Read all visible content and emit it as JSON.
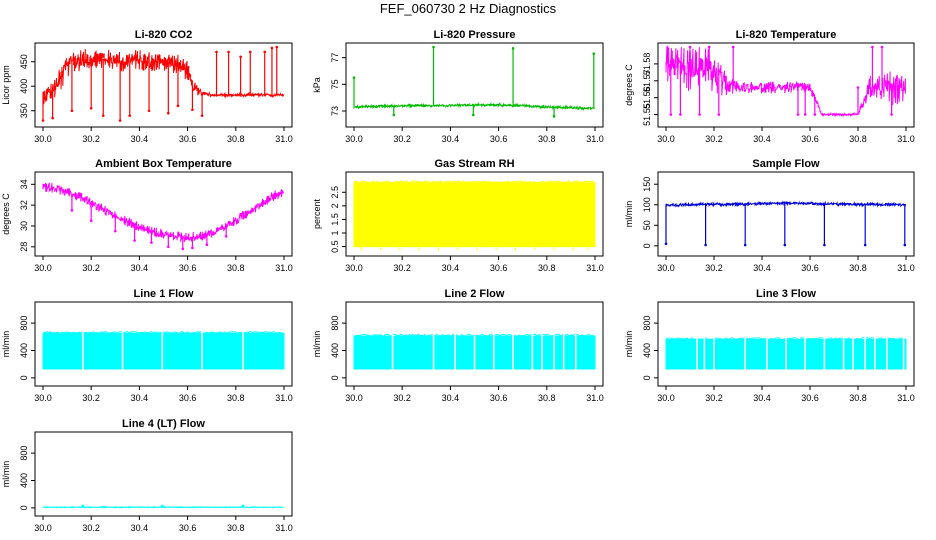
{
  "figure": {
    "title": "FEF_060730  2 Hz Diagnostics"
  },
  "chart_data": [
    {
      "type": "line",
      "title": "Li-820 CO2",
      "ylabel": "Licor ppm",
      "xlim": [
        30.0,
        31.0
      ],
      "ylim": [
        325,
        480
      ],
      "xticks": [
        30.0,
        30.2,
        30.4,
        30.6,
        30.8,
        31.0
      ],
      "xtick_labels": [
        "30.0",
        "30.2",
        "30.4",
        "30.6",
        "30.8",
        "31.0"
      ],
      "yticks": [
        350,
        400,
        450
      ],
      "ytick_labels": [
        "350",
        "400",
        "450"
      ],
      "color": "#ff0000",
      "series": [
        {
          "name": "CO2",
          "x": [
            30.0,
            30.02,
            30.05,
            30.08,
            30.1,
            30.14,
            30.18,
            30.22,
            30.26,
            30.3,
            30.34,
            30.38,
            30.42,
            30.46,
            30.5,
            30.54,
            30.58,
            30.6,
            30.62,
            30.64,
            30.66,
            30.68,
            30.7,
            30.75,
            30.8,
            30.85,
            30.9,
            30.95,
            31.0
          ],
          "values": [
            380,
            385,
            395,
            420,
            445,
            452,
            455,
            458,
            455,
            452,
            450,
            455,
            452,
            450,
            450,
            448,
            440,
            430,
            400,
            392,
            386,
            384,
            382,
            382,
            382,
            382,
            382,
            382,
            382
          ],
          "band": [
            25,
            25,
            30,
            40,
            40,
            35,
            30,
            30,
            30,
            30,
            30,
            30,
            30,
            30,
            30,
            30,
            30,
            30,
            20,
            15,
            10,
            8,
            5,
            5,
            5,
            5,
            5,
            5,
            5
          ],
          "spikes_x": [
            30.0,
            30.04,
            30.12,
            30.2,
            30.25,
            30.32,
            30.36,
            30.44,
            30.52,
            30.56,
            30.62,
            30.66,
            30.72,
            30.77,
            30.82,
            30.86,
            30.92,
            30.95,
            30.97
          ],
          "spikes_to": [
            330,
            335,
            350,
            355,
            340,
            330,
            340,
            350,
            345,
            360,
            352,
            340,
            470,
            470,
            460,
            470,
            470,
            478,
            480
          ]
        }
      ]
    },
    {
      "type": "line",
      "title": "Li-820 Pressure",
      "ylabel": "kPa",
      "xlim": [
        30.0,
        31.0
      ],
      "ylim": [
        72.1,
        77.8
      ],
      "xticks": [
        30.0,
        30.2,
        30.4,
        30.6,
        30.8,
        31.0
      ],
      "xtick_labels": [
        "30.0",
        "30.2",
        "30.4",
        "30.6",
        "30.8",
        "31.0"
      ],
      "yticks": [
        73,
        75,
        77
      ],
      "ytick_labels": [
        "73",
        "75",
        "77"
      ],
      "color": "#00bb00",
      "series": [
        {
          "name": "Pressure",
          "x": [
            30.0,
            30.1,
            30.2,
            30.3,
            30.4,
            30.5,
            30.6,
            30.7,
            30.8,
            30.9,
            31.0
          ],
          "values": [
            73.3,
            73.35,
            73.38,
            73.4,
            73.42,
            73.45,
            73.45,
            73.4,
            73.3,
            73.25,
            73.2
          ],
          "band": [
            0.15,
            0.15,
            0.15,
            0.15,
            0.15,
            0.15,
            0.15,
            0.15,
            0.15,
            0.15,
            0.15
          ],
          "spikes_x": [
            30.0,
            30.165,
            30.33,
            30.495,
            30.66,
            30.83,
            30.995
          ],
          "spikes_to": [
            75.5,
            72.7,
            77.8,
            72.7,
            77.7,
            72.6,
            77.3
          ]
        }
      ]
    },
    {
      "type": "line",
      "title": "Li-820 Temperature",
      "ylabel": "degrees C",
      "xlim": [
        30.0,
        31.0
      ],
      "ylim": [
        51.545,
        51.59
      ],
      "xticks": [
        30.0,
        30.2,
        30.4,
        30.6,
        30.8,
        31.0
      ],
      "xtick_labels": [
        "30.0",
        "30.2",
        "30.4",
        "30.6",
        "30.8",
        "31.0"
      ],
      "yticks": [
        51.55,
        51.56,
        51.57,
        51.58
      ],
      "ytick_labels": [
        "51.55",
        "51.56",
        "51.57",
        "51.58"
      ],
      "color": "#ff00ff",
      "series": [
        {
          "name": "Temperature",
          "x": [
            30.0,
            30.05,
            30.1,
            30.15,
            30.2,
            30.25,
            30.3,
            30.35,
            30.4,
            30.45,
            30.5,
            30.55,
            30.6,
            30.65,
            30.7,
            30.75,
            30.8,
            30.85,
            30.9,
            30.95,
            31.0
          ],
          "values": [
            51.58,
            51.58,
            51.575,
            51.58,
            51.575,
            51.568,
            51.566,
            51.566,
            51.566,
            51.566,
            51.566,
            51.566,
            51.566,
            51.55,
            51.55,
            51.55,
            51.55,
            51.566,
            51.566,
            51.566,
            51.566
          ],
          "band": [
            0.016,
            0.016,
            0.02,
            0.016,
            0.02,
            0.01,
            0.005,
            0.005,
            0.005,
            0.005,
            0.005,
            0.005,
            0.005,
            0.001,
            0.001,
            0.001,
            0.001,
            0.01,
            0.012,
            0.016,
            0.01
          ],
          "spikes_x": [
            30.02,
            30.06,
            30.1,
            30.14,
            30.18,
            30.22,
            30.28,
            30.55,
            30.58,
            30.62,
            30.8,
            30.86,
            30.9,
            30.94
          ],
          "spikes_to": [
            51.55,
            51.55,
            51.59,
            51.55,
            51.59,
            51.55,
            51.59,
            51.55,
            51.55,
            51.55,
            51.566,
            51.59,
            51.59,
            51.55
          ]
        }
      ]
    },
    {
      "type": "line",
      "title": "Ambient Box Temperature",
      "ylabel": "degrees C",
      "xlim": [
        30.0,
        31.0
      ],
      "ylim": [
        27.5,
        34.8
      ],
      "xticks": [
        30.0,
        30.2,
        30.4,
        30.6,
        30.8,
        31.0
      ],
      "xtick_labels": [
        "30.0",
        "30.2",
        "30.4",
        "30.6",
        "30.8",
        "31.0"
      ],
      "yticks": [
        28,
        30,
        32,
        34
      ],
      "ytick_labels": [
        "28",
        "30",
        "32",
        "34"
      ],
      "color": "#ff00ff",
      "series": [
        {
          "name": "Ambient",
          "x": [
            30.0,
            30.05,
            30.1,
            30.15,
            30.2,
            30.25,
            30.3,
            30.35,
            30.4,
            30.45,
            30.5,
            30.55,
            30.6,
            30.65,
            30.7,
            30.75,
            30.8,
            30.85,
            30.9,
            30.95,
            31.0
          ],
          "values": [
            33.8,
            33.6,
            33.3,
            32.8,
            32.2,
            31.6,
            31.0,
            30.4,
            29.9,
            29.5,
            29.2,
            29.0,
            28.9,
            29.0,
            29.3,
            29.8,
            30.5,
            31.3,
            32.1,
            32.8,
            33.3
          ],
          "band": [
            0.7,
            0.7,
            0.7,
            0.7,
            0.7,
            0.7,
            0.7,
            0.7,
            0.7,
            0.7,
            0.7,
            0.7,
            0.7,
            0.7,
            0.7,
            0.7,
            0.7,
            0.7,
            0.7,
            0.7,
            0.7
          ],
          "spikes_x": [
            30.12,
            30.2,
            30.3,
            30.38,
            30.45,
            30.52,
            30.58,
            30.62,
            30.68,
            30.76
          ],
          "spikes_to": [
            31.5,
            30.5,
            29.5,
            28.6,
            28.4,
            28.0,
            27.8,
            27.9,
            28.2,
            29.0
          ]
        }
      ]
    },
    {
      "type": "area",
      "title": "Gas Stream RH",
      "ylabel": "percent",
      "xlim": [
        30.0,
        31.0
      ],
      "ylim": [
        0.3,
        3.1
      ],
      "xticks": [
        30.0,
        30.2,
        30.4,
        30.6,
        30.8,
        31.0
      ],
      "xtick_labels": [
        "30.0",
        "30.2",
        "30.4",
        "30.6",
        "30.8",
        "31.0"
      ],
      "yticks": [
        0.5,
        1.0,
        1.5,
        2.0,
        2.5
      ],
      "ytick_labels": [
        "0.5",
        "1",
        "1.5",
        "2",
        "2.5"
      ],
      "color": "#ffff00",
      "series": [
        {
          "name": "RH",
          "x": [
            30.0,
            31.0
          ],
          "band_top": [
            2.85,
            2.85
          ],
          "band_bottom": [
            0.5,
            0.5
          ],
          "spikes_x": [
            30.03,
            30.11,
            30.19,
            30.27,
            30.35,
            30.43,
            30.51,
            30.59,
            30.67,
            30.75,
            30.83,
            30.91,
            30.97
          ],
          "spikes_to": [
            0.35,
            0.38,
            0.35,
            0.36,
            0.35,
            0.37,
            0.35,
            0.36,
            0.35,
            0.38,
            0.35,
            0.36,
            0.37
          ]
        }
      ]
    },
    {
      "type": "line",
      "title": "Sample Flow",
      "ylabel": "ml/min",
      "xlim": [
        30.0,
        31.0
      ],
      "ylim": [
        -15,
        170
      ],
      "xticks": [
        30.0,
        30.2,
        30.4,
        30.6,
        30.8,
        31.0
      ],
      "xtick_labels": [
        "30.0",
        "30.2",
        "30.4",
        "30.6",
        "30.8",
        "31.0"
      ],
      "yticks": [
        0,
        50,
        100,
        150
      ],
      "ytick_labels": [
        "0",
        "50",
        "100",
        "150"
      ],
      "color": "#0000dd",
      "series": [
        {
          "name": "Sample Flow",
          "x": [
            30.0,
            30.2,
            30.4,
            30.5,
            30.6,
            30.8,
            31.0
          ],
          "values": [
            99,
            101,
            103,
            104,
            103,
            101,
            100
          ],
          "band": [
            5,
            5,
            5,
            5,
            5,
            5,
            5
          ],
          "spikes_x": [
            30.0,
            30.165,
            30.33,
            30.495,
            30.66,
            30.83,
            30.995
          ],
          "spikes_to": [
            5,
            2,
            2,
            2,
            2,
            2,
            2
          ]
        }
      ]
    },
    {
      "type": "area",
      "title": "Line 1 Flow",
      "ylabel": "ml/min",
      "xlim": [
        30.0,
        31.0
      ],
      "ylim": [
        -60,
        1050
      ],
      "xticks": [
        30.0,
        30.2,
        30.4,
        30.6,
        30.8,
        31.0
      ],
      "xtick_labels": [
        "30.0",
        "30.2",
        "30.4",
        "30.6",
        "30.8",
        "31.0"
      ],
      "yticks": [
        0,
        400,
        800
      ],
      "ytick_labels": [
        "0",
        "400",
        "800"
      ],
      "color": "#00ffff",
      "series": [
        {
          "name": "Line 1",
          "x": [
            30.0,
            31.0
          ],
          "band_top": [
            650,
            650
          ],
          "band_bottom": [
            130,
            130
          ],
          "gaps_x": [
            30.165,
            30.33,
            30.495,
            30.66,
            30.83
          ]
        }
      ]
    },
    {
      "type": "area",
      "title": "Line 2 Flow",
      "ylabel": "ml/min",
      "xlim": [
        30.0,
        31.0
      ],
      "ylim": [
        -60,
        1050
      ],
      "xticks": [
        30.0,
        30.2,
        30.4,
        30.6,
        30.8,
        31.0
      ],
      "xtick_labels": [
        "30.0",
        "30.2",
        "30.4",
        "30.6",
        "30.8",
        "31.0"
      ],
      "yticks": [
        0,
        400,
        800
      ],
      "ytick_labels": [
        "0",
        "400",
        "800"
      ],
      "color": "#00ffff",
      "series": [
        {
          "name": "Line 2",
          "x": [
            30.0,
            31.0
          ],
          "band_top": [
            610,
            610
          ],
          "band_bottom": [
            130,
            130
          ],
          "gaps_x": [
            30.16,
            30.33,
            30.42,
            30.5,
            30.58,
            30.66,
            30.74,
            30.78,
            30.83,
            30.87,
            30.92
          ]
        }
      ]
    },
    {
      "type": "area",
      "title": "Line 3 Flow",
      "ylabel": "ml/min",
      "xlim": [
        30.0,
        31.0
      ],
      "ylim": [
        -60,
        1050
      ],
      "xticks": [
        30.0,
        30.2,
        30.4,
        30.6,
        30.8,
        31.0
      ],
      "xtick_labels": [
        "30.0",
        "30.2",
        "30.4",
        "30.6",
        "30.8",
        "31.0"
      ],
      "yticks": [
        0,
        400,
        800
      ],
      "ytick_labels": [
        "0",
        "400",
        "800"
      ],
      "color": "#00ffff",
      "series": [
        {
          "name": "Line 3",
          "x": [
            30.0,
            31.0
          ],
          "band_top": [
            560,
            560
          ],
          "band_bottom": [
            130,
            130
          ],
          "gaps_x": [
            30.13,
            30.16,
            30.2,
            30.33,
            30.42,
            30.5,
            30.58,
            30.66,
            30.74,
            30.78,
            30.83,
            30.87,
            30.92,
            30.99
          ]
        }
      ]
    },
    {
      "type": "line",
      "title": "Line 4 (LT) Flow",
      "ylabel": "ml/min",
      "xlim": [
        30.0,
        31.0
      ],
      "ylim": [
        -60,
        1050
      ],
      "xticks": [
        30.0,
        30.2,
        30.4,
        30.6,
        30.8,
        31.0
      ],
      "xtick_labels": [
        "30.0",
        "30.2",
        "30.4",
        "30.6",
        "30.8",
        "31.0"
      ],
      "yticks": [
        0,
        400,
        800
      ],
      "ytick_labels": [
        "0",
        "400",
        "800"
      ],
      "color": "#00ffff",
      "series": [
        {
          "name": "Line 4",
          "x": [
            30.0,
            31.0
          ],
          "values": [
            10,
            10
          ],
          "band": [
            8,
            8
          ],
          "spikes_x": [
            30.165,
            30.495,
            30.83
          ],
          "spikes_to": [
            30,
            28,
            30
          ]
        }
      ]
    }
  ]
}
